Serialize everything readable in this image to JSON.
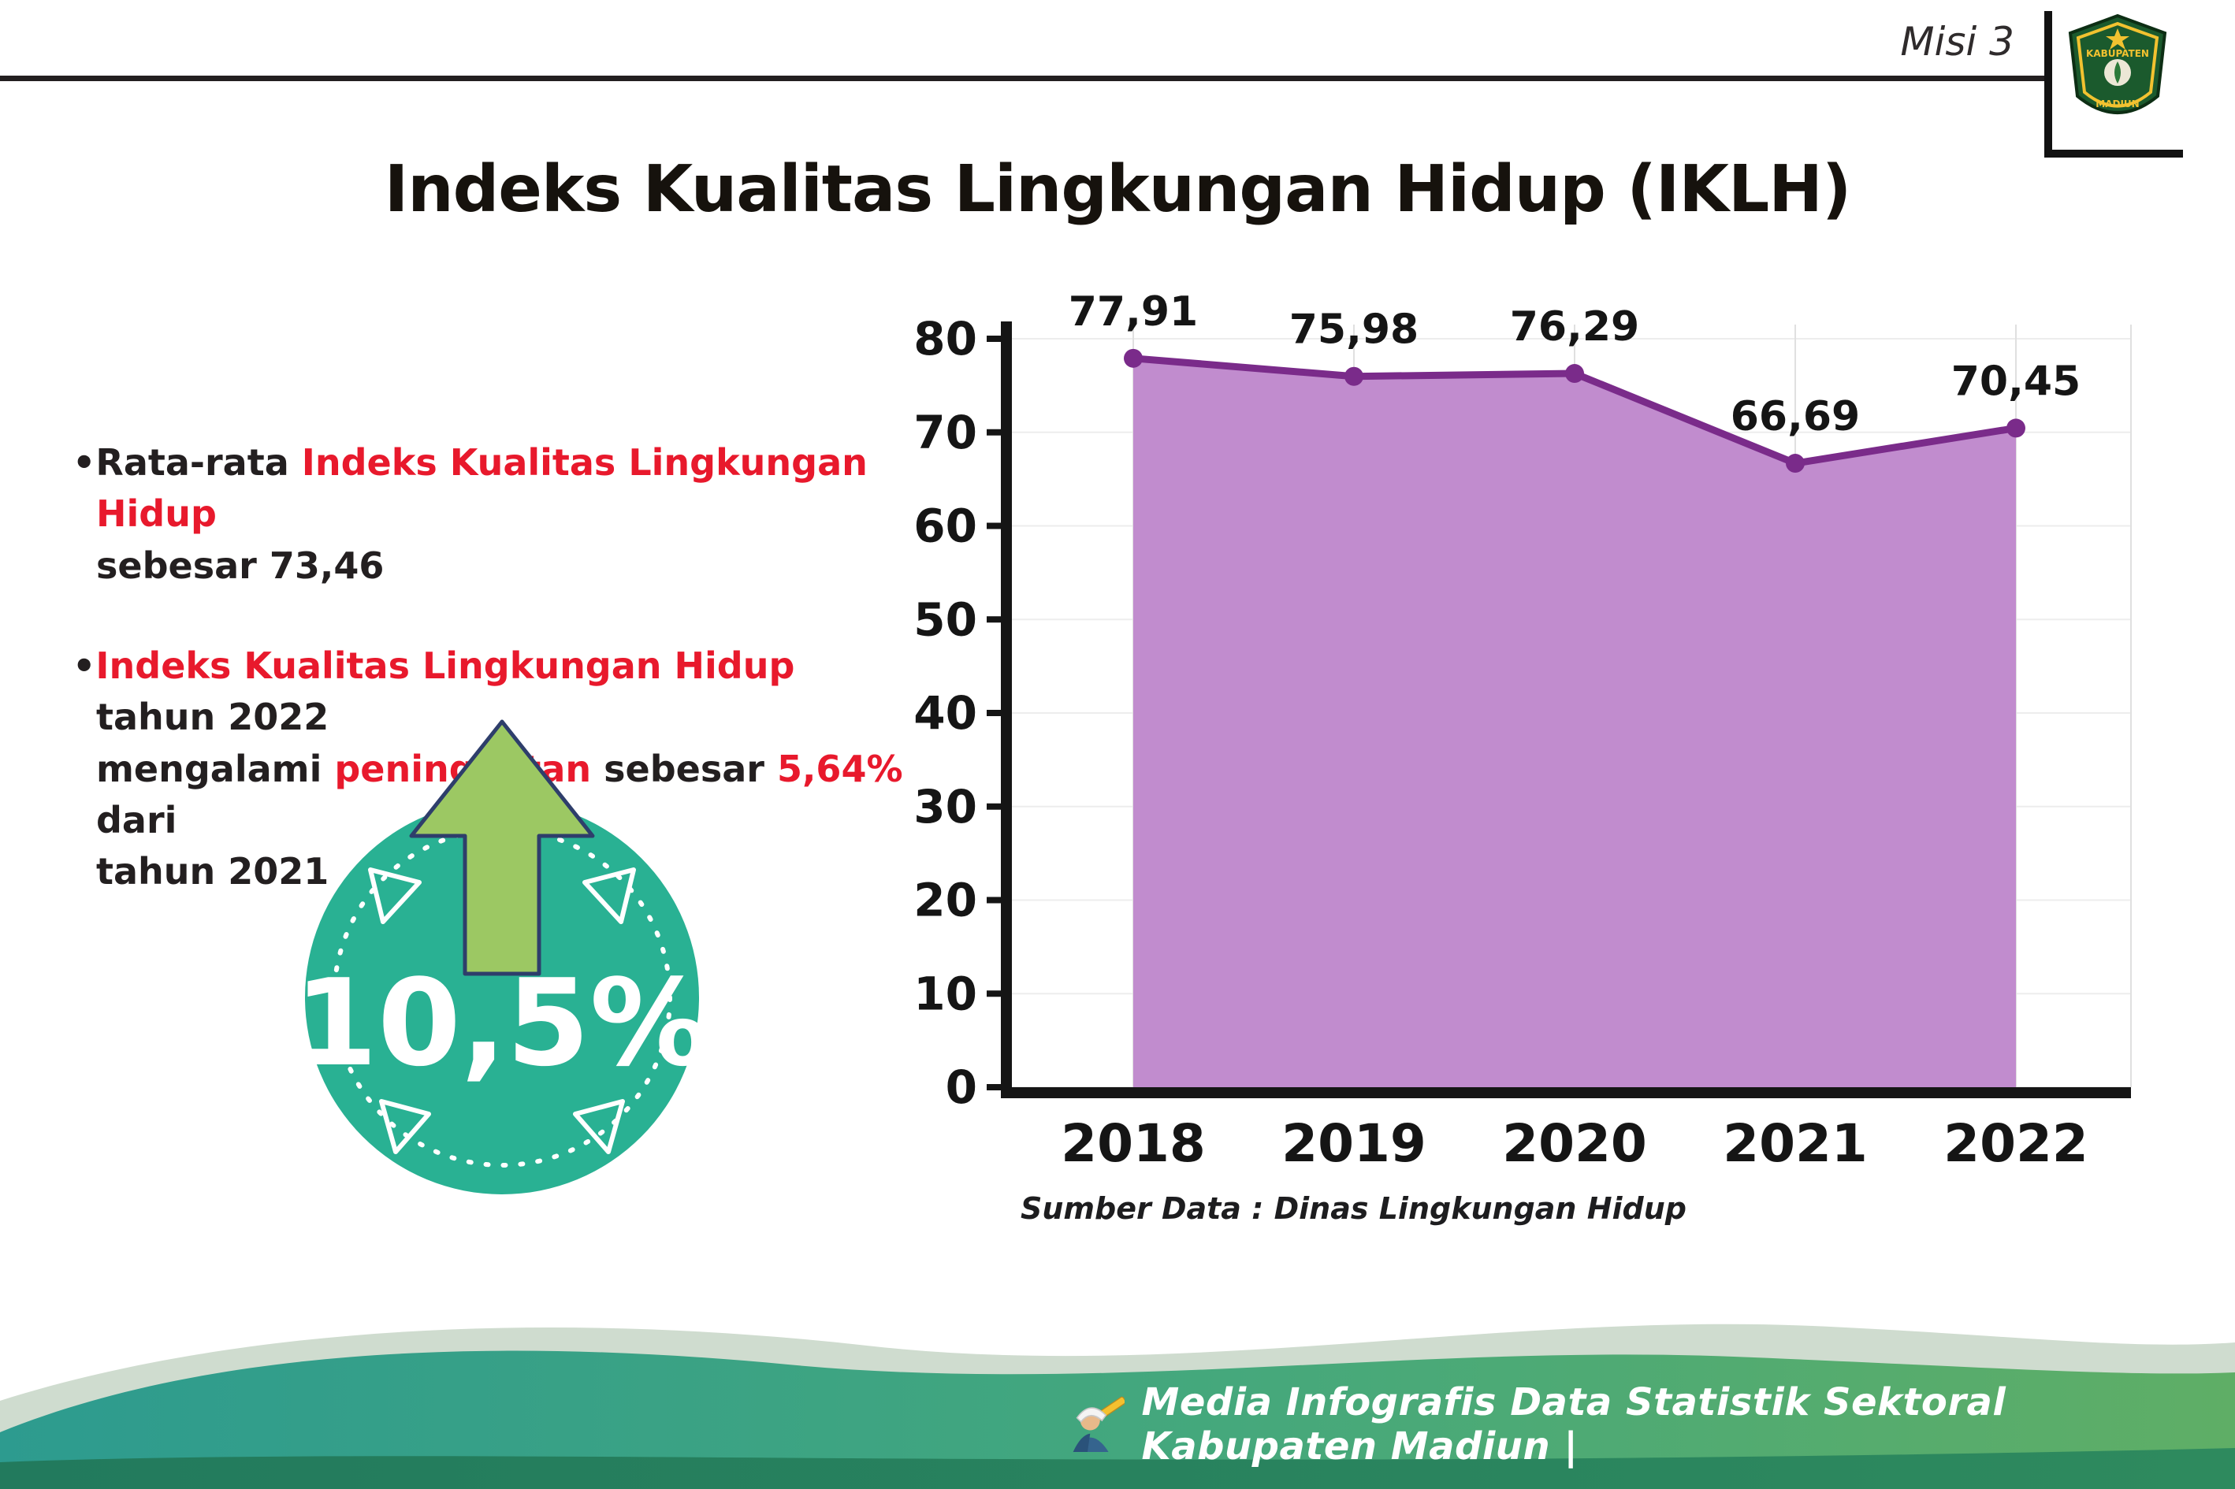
{
  "header": {
    "misi": "Misi 3",
    "title": "Indeks Kualitas Lingkungan Hidup (IKLH)"
  },
  "logo": {
    "top_text": "KABUPATEN",
    "bottom_text": "MADIUN"
  },
  "bullets": [
    {
      "marker": "•",
      "segments": [
        {
          "text": "Rata-rata ",
          "color": "#231f20"
        },
        {
          "text": "Indeks Kualitas Lingkungan Hidup",
          "color": "#e8192c"
        },
        {
          "text": "\nsebesar 73,46",
          "color": "#231f20"
        }
      ]
    },
    {
      "marker": "•",
      "segments": [
        {
          "text": "Indeks Kualitas Lingkungan Hidup",
          "color": "#e8192c"
        },
        {
          "text": " tahun 2022\nmengalami ",
          "color": "#231f20"
        },
        {
          "text": "peningkatan",
          "color": "#e8192c"
        },
        {
          "text": " sebesar ",
          "color": "#231f20"
        },
        {
          "text": "5,64%",
          "color": "#e8192c"
        },
        {
          "text": " dari\ntahun 2021",
          "color": "#231f20"
        }
      ]
    }
  ],
  "badge": {
    "value": "10,5%",
    "circle_color": "#29b193",
    "arrow_color": "#9cc863",
    "arrow_outline": "#2e3e6b"
  },
  "chart_data": {
    "type": "area",
    "title": "Indeks Kualitas Lingkungan Hidup (IKLH)",
    "categories": [
      "2018",
      "2019",
      "2020",
      "2021",
      "2022"
    ],
    "values": [
      77.91,
      75.98,
      76.29,
      66.69,
      70.45
    ],
    "labels": [
      "77,91",
      "75,98",
      "76,29",
      "66,69",
      "70,45"
    ],
    "ylim": [
      0,
      80
    ],
    "ytick_step": 10,
    "grid": true,
    "line_color": "#7a2b8a",
    "fill_color": "#c18cce",
    "axis_color": "#151515",
    "source": "Sumber Data : Dinas Lingkungan Hidup"
  },
  "footer": {
    "text": "Media Infografis Data Statistik Sektoral Kabupaten Madiun |"
  }
}
